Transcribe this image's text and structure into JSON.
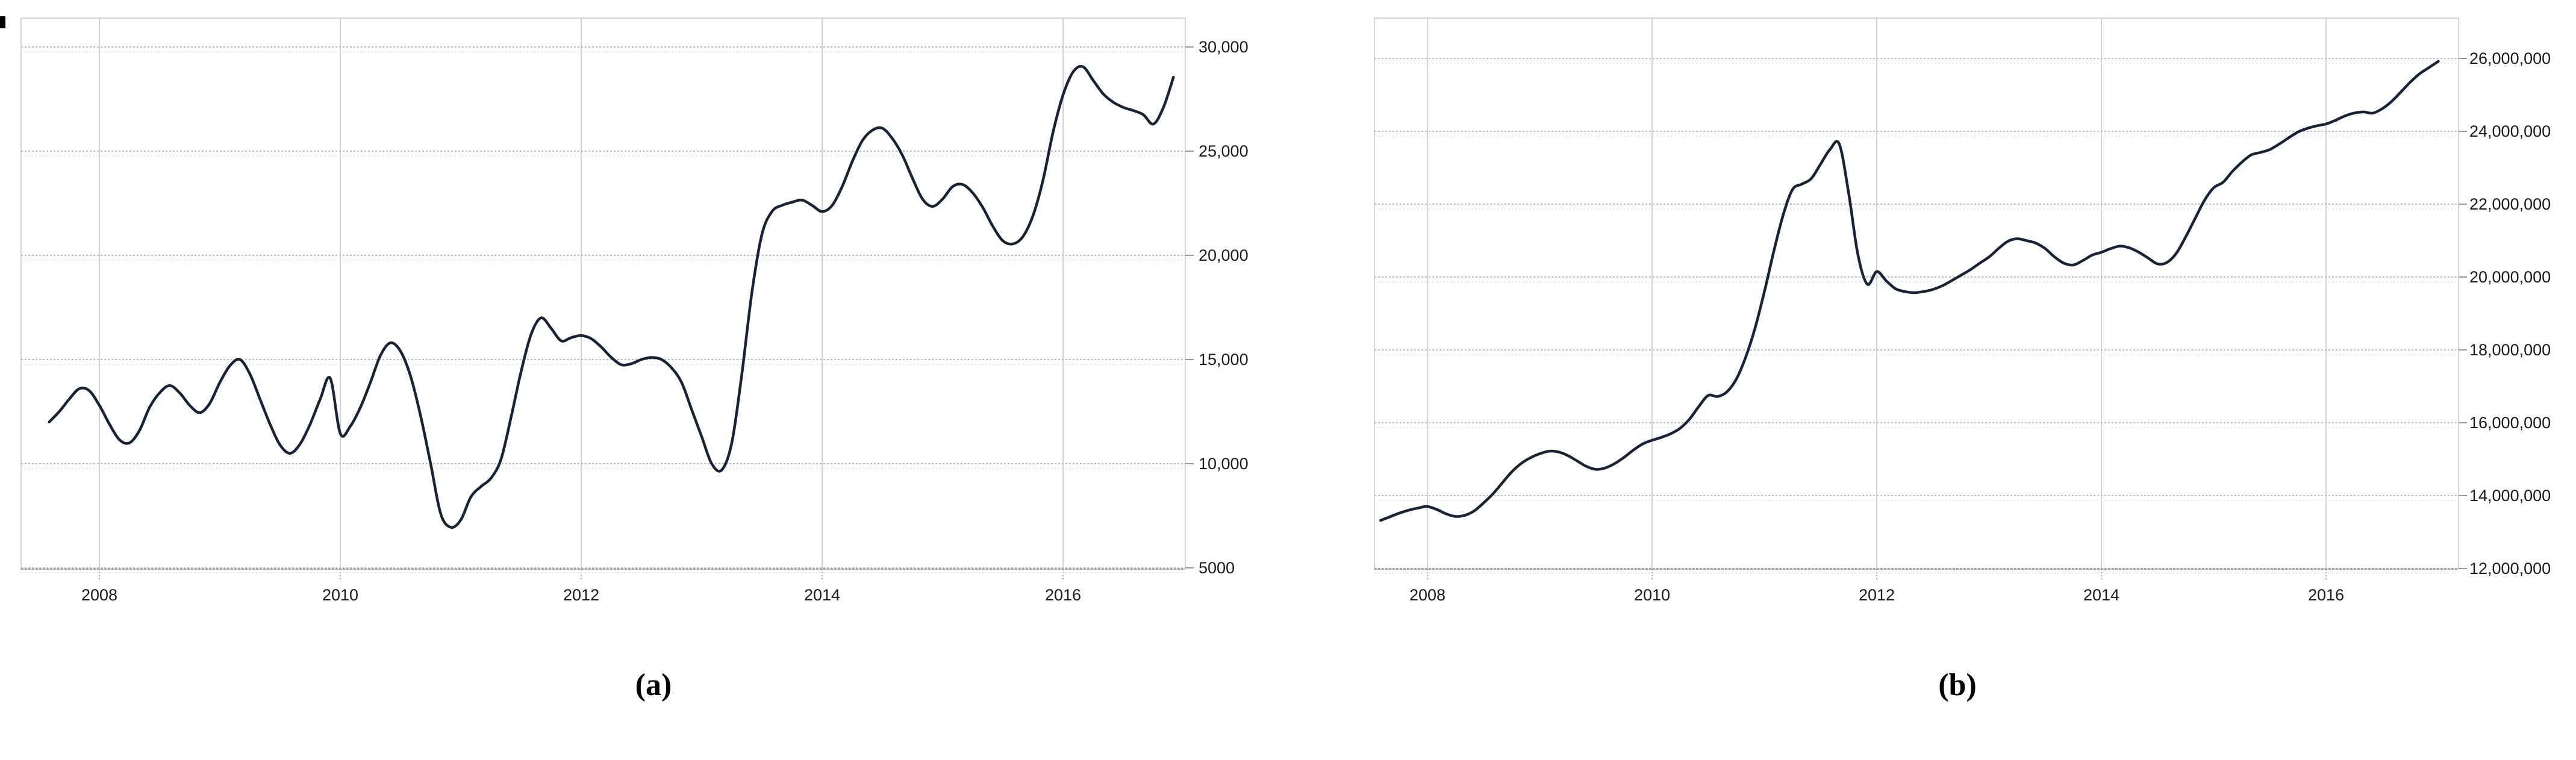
{
  "page": {
    "background": "#ffffff"
  },
  "captions": {
    "a": "(a)",
    "b": "(b)"
  },
  "chart_data": [
    {
      "id": "a",
      "type": "line",
      "title": "",
      "xlabel": "",
      "ylabel": "",
      "legend": null,
      "grid": true,
      "line_color": "#172336",
      "grid_color": "#bdbdbd",
      "grid_echo_color": "#e4e4e4",
      "vgrid_color": "#d2d2d2",
      "border_color": "#c8c8c8",
      "axis_color": "#9a9a9a",
      "label_color": "#1b1b1b",
      "x_start_year": 2007,
      "x_start_month": 8,
      "months_per_point": 1,
      "x_ticks": [
        2008,
        2010,
        2012,
        2014,
        2016
      ],
      "x_tick_labels": [
        "2008",
        "2010",
        "2012",
        "2014",
        "2016"
      ],
      "ylim": [
        5000,
        30000
      ],
      "y_ticks": [
        5000,
        10000,
        15000,
        20000,
        25000,
        30000
      ],
      "y_tick_labels": [
        "5000",
        "10,000",
        "15,000",
        "20,000",
        "25,000",
        "30,000"
      ],
      "values": [
        12000,
        12500,
        13100,
        13600,
        13500,
        12800,
        11900,
        11150,
        11000,
        11600,
        12700,
        13400,
        13750,
        13400,
        12800,
        12450,
        12900,
        13900,
        14700,
        15000,
        14300,
        13100,
        11900,
        10900,
        10500,
        10950,
        11900,
        13100,
        14100,
        11450,
        11800,
        12700,
        13900,
        15200,
        15800,
        15400,
        14200,
        12300,
        10000,
        7600,
        6950,
        7300,
        8400,
        8900,
        9300,
        10200,
        12200,
        14400,
        16200,
        17000,
        16500,
        15900,
        16050,
        16150,
        16000,
        15600,
        15100,
        14750,
        14800,
        15000,
        15100,
        15000,
        14600,
        13900,
        12600,
        11300,
        10000,
        9700,
        11000,
        14300,
        18200,
        21000,
        22100,
        22400,
        22550,
        22650,
        22400,
        22100,
        22400,
        23300,
        24500,
        25500,
        26000,
        26100,
        25600,
        24800,
        23700,
        22700,
        22350,
        22700,
        23300,
        23400,
        23000,
        22300,
        21400,
        20700,
        20550,
        20900,
        21900,
        23600,
        25900,
        27700,
        28800,
        29050,
        28400,
        27750,
        27350,
        27100,
        26950,
        26750,
        26300,
        27100,
        28550
      ]
    },
    {
      "id": "b",
      "type": "line",
      "title": "",
      "xlabel": "",
      "ylabel": "",
      "legend": null,
      "grid": true,
      "line_color": "#172336",
      "grid_color": "#bdbdbd",
      "grid_echo_color": "#e4e4e4",
      "vgrid_color": "#d2d2d2",
      "border_color": "#c8c8c8",
      "axis_color": "#9a9a9a",
      "label_color": "#1b1b1b",
      "x_start_year": 2007,
      "x_start_month": 8,
      "months_per_point": 1,
      "x_ticks": [
        2008,
        2010,
        2012,
        2014,
        2016
      ],
      "x_tick_labels": [
        "2008",
        "2010",
        "2012",
        "2014",
        "2016"
      ],
      "ylim": [
        12000000,
        26000000
      ],
      "y_ticks": [
        12000000,
        14000000,
        16000000,
        18000000,
        20000000,
        22000000,
        24000000,
        26000000
      ],
      "y_tick_labels": [
        "12,000,000",
        "14,000,000",
        "16,000,000",
        "18,000,000",
        "20,000,000",
        "22,000,000",
        "24,000,000",
        "26,000,000"
      ],
      "values": [
        13320000,
        13420000,
        13520000,
        13600000,
        13660000,
        13700000,
        13620000,
        13500000,
        13430000,
        13460000,
        13580000,
        13800000,
        14050000,
        14350000,
        14650000,
        14880000,
        15040000,
        15150000,
        15220000,
        15200000,
        15100000,
        14950000,
        14800000,
        14720000,
        14760000,
        14880000,
        15050000,
        15250000,
        15420000,
        15520000,
        15600000,
        15700000,
        15850000,
        16100000,
        16450000,
        16750000,
        16720000,
        16850000,
        17200000,
        17800000,
        18600000,
        19600000,
        20700000,
        21700000,
        22400000,
        22550000,
        22700000,
        23100000,
        23500000,
        23650000,
        22300000,
        20600000,
        19800000,
        20150000,
        19900000,
        19680000,
        19600000,
        19570000,
        19600000,
        19660000,
        19760000,
        19900000,
        20050000,
        20200000,
        20380000,
        20550000,
        20780000,
        20980000,
        21050000,
        21000000,
        20930000,
        20780000,
        20550000,
        20380000,
        20330000,
        20450000,
        20600000,
        20680000,
        20780000,
        20850000,
        20800000,
        20680000,
        20520000,
        20360000,
        20400000,
        20650000,
        21100000,
        21600000,
        22100000,
        22450000,
        22600000,
        22900000,
        23150000,
        23350000,
        23420000,
        23500000,
        23650000,
        23820000,
        23980000,
        24080000,
        24150000,
        24200000,
        24300000,
        24420000,
        24500000,
        24530000,
        24500000,
        24620000,
        24820000,
        25080000,
        25350000,
        25580000,
        25750000,
        25920000
      ]
    }
  ]
}
